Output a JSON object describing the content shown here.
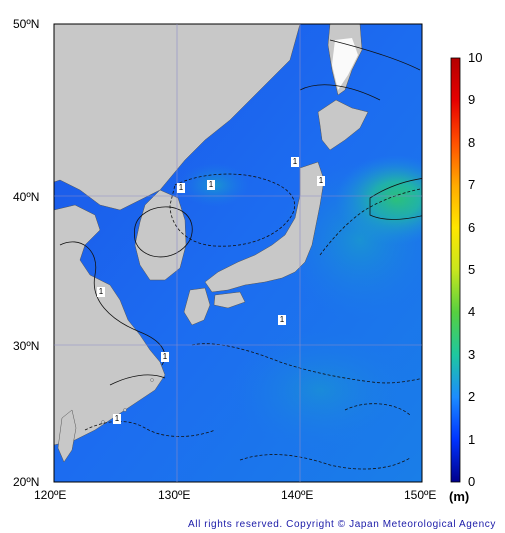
{
  "map": {
    "lat_labels": [
      "50ºN",
      "40ºN",
      "30ºN",
      "20ºN"
    ],
    "lon_labels": [
      "120ºE",
      "130ºE",
      "140ºE",
      "150ºE"
    ],
    "extent": {
      "lon": [
        120,
        150
      ],
      "lat": [
        20,
        50
      ]
    }
  },
  "contour_labels": [
    "1",
    "1",
    "1",
    "1",
    "1",
    "1",
    "1",
    "1"
  ],
  "colorbar": {
    "ticks": [
      "10",
      "9",
      "8",
      "7",
      "6",
      "5",
      "4",
      "3",
      "2",
      "1",
      "0"
    ],
    "unit": "(m)",
    "range": [
      0,
      10
    ],
    "colors": [
      "#00008c",
      "#0033ff",
      "#1c8cff",
      "#1ec8a0",
      "#56d040",
      "#c8e61e",
      "#ffe600",
      "#ffaa00",
      "#ff5000",
      "#e60000",
      "#b40000"
    ]
  },
  "copyright": "All rights reserved. Copyright © Japan Meteorological Agency"
}
